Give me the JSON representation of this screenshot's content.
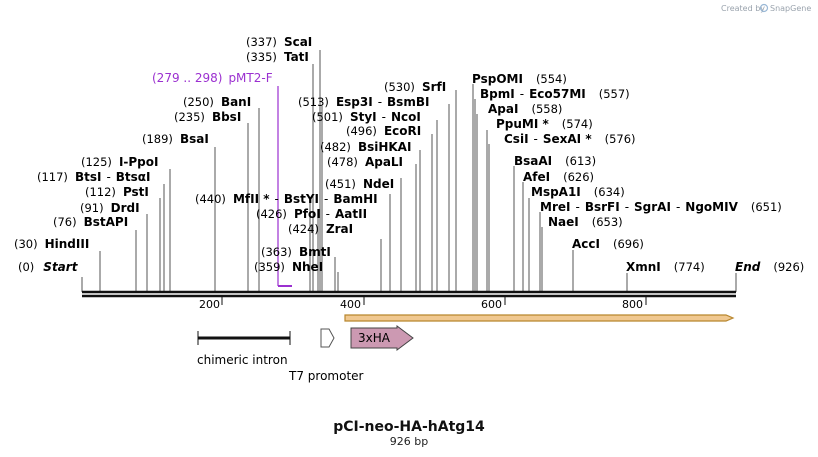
{
  "credit": {
    "text": "Created by",
    "brand": "SnapGene"
  },
  "plasmid": {
    "name": "pCI-neo-HA-hAtg14",
    "length_label": "926 bp",
    "length": 926
  },
  "scale_ticks": [
    "200",
    "400",
    "600",
    "800"
  ],
  "sites": [
    {
      "pos": "(337)",
      "parts": [
        "ScaI"
      ]
    },
    {
      "pos": "(335)",
      "parts": [
        "TatI"
      ]
    },
    {
      "pos": "(250)",
      "parts": [
        "BanI"
      ]
    },
    {
      "pos": "(235)",
      "parts": [
        "BbsI"
      ]
    },
    {
      "pos": "(189)",
      "parts": [
        "BsaI"
      ]
    },
    {
      "pos": "(125)",
      "parts": [
        "I-PpoI"
      ]
    },
    {
      "pos": "(117)",
      "parts": [
        "BtsI",
        "BtsαI"
      ]
    },
    {
      "pos": "(112)",
      "parts": [
        "PstI"
      ]
    },
    {
      "pos": "(91)",
      "parts": [
        "DrdI"
      ]
    },
    {
      "pos": "(76)",
      "parts": [
        "BstAPI"
      ]
    },
    {
      "pos": "(30)",
      "parts": [
        "HindIII"
      ]
    },
    {
      "pos": "(0)",
      "parts": [
        "Start"
      ]
    },
    {
      "pos": "(530)",
      "parts": [
        "SrfI"
      ]
    },
    {
      "pos": "(513)",
      "parts": [
        "Esp3I",
        "BsmBI"
      ]
    },
    {
      "pos": "(501)",
      "parts": [
        "StyI",
        "NcoI"
      ]
    },
    {
      "pos": "(496)",
      "parts": [
        "EcoRI"
      ]
    },
    {
      "pos": "(482)",
      "parts": [
        "BsiHKAI"
      ]
    },
    {
      "pos": "(478)",
      "parts": [
        "ApaLI"
      ]
    },
    {
      "pos": "(451)",
      "parts": [
        "NdeI"
      ]
    },
    {
      "pos": "(440)",
      "parts": [
        "MfII *",
        "BstYI",
        "BamHI"
      ]
    },
    {
      "pos": "(426)",
      "parts": [
        "PfoI",
        "AatII"
      ]
    },
    {
      "pos": "(424)",
      "parts": [
        "ZraI"
      ]
    },
    {
      "pos": "(363)",
      "parts": [
        "BmtI"
      ]
    },
    {
      "pos": "(359)",
      "parts": [
        "NheI"
      ]
    },
    {
      "pos": "(554)",
      "parts": [
        "PspOMI"
      ]
    },
    {
      "pos": "(557)",
      "parts": [
        "BpmI",
        "Eco57MI"
      ]
    },
    {
      "pos": "(558)",
      "parts": [
        "ApaI"
      ]
    },
    {
      "pos": "(574)",
      "parts": [
        "PpuMI *"
      ]
    },
    {
      "pos": "(576)",
      "parts": [
        "CsiI",
        "SexAI *"
      ]
    },
    {
      "pos": "(613)",
      "parts": [
        "BsaAI"
      ]
    },
    {
      "pos": "(626)",
      "parts": [
        "AfeI"
      ]
    },
    {
      "pos": "(634)",
      "parts": [
        "MspA1I"
      ]
    },
    {
      "pos": "(651)",
      "parts": [
        "MreI",
        "BsrFI",
        "SgrAI",
        "NgoMIV"
      ]
    },
    {
      "pos": "(653)",
      "parts": [
        "NaeI"
      ]
    },
    {
      "pos": "(696)",
      "parts": [
        "AccI"
      ]
    },
    {
      "pos": "(774)",
      "parts": [
        "XmnI"
      ]
    },
    {
      "pos": "(926)",
      "parts": [
        "End"
      ]
    }
  ],
  "primer": {
    "range": "(279 .. 298)",
    "name": "pMT2-F"
  },
  "features": {
    "intron": "chimeric intron",
    "promoter": "T7 promoter",
    "tag": "3xHA"
  },
  "colors": {
    "primer": "#9b30d0",
    "tag_fill": "#cc99b2",
    "orf_fill": "#f0c890",
    "orf_edge": "#b8862e"
  }
}
